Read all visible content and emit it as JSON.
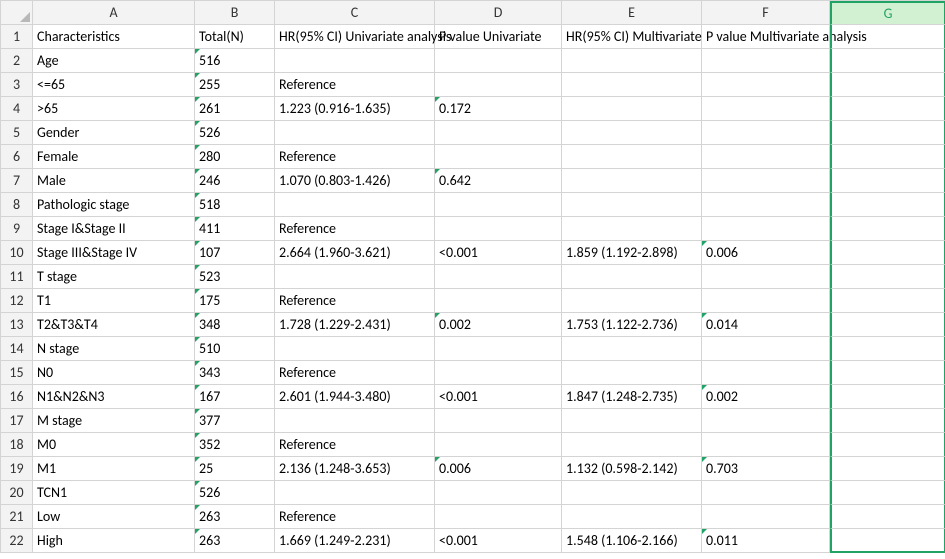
{
  "columns": [
    "A",
    "B",
    "C",
    "D",
    "E",
    "F",
    "G"
  ],
  "rowCount": 22,
  "headerRow": {
    "A": "Characteristics",
    "B": "Total(N)",
    "C": "HR(95% CI) Univariate analysis",
    "D": "P value Univariate",
    "E": "HR(95% CI) Multivariate",
    "F": "P value Multivariate analysis",
    "G": ""
  },
  "rows": [
    {
      "A": "Age",
      "B": "516",
      "C": "",
      "D": "",
      "E": "",
      "F": ""
    },
    {
      "A": "<=65",
      "B": "255",
      "C": "Reference",
      "D": "",
      "E": "",
      "F": ""
    },
    {
      "A": ">65",
      "B": "261",
      "C": "1.223 (0.916-1.635)",
      "D": "0.172",
      "E": "",
      "F": ""
    },
    {
      "A": "Gender",
      "B": "526",
      "C": "",
      "D": "",
      "E": "",
      "F": ""
    },
    {
      "A": "Female",
      "B": "280",
      "C": "Reference",
      "D": "",
      "E": "",
      "F": ""
    },
    {
      "A": "Male",
      "B": "246",
      "C": "1.070 (0.803-1.426)",
      "D": "0.642",
      "E": "",
      "F": ""
    },
    {
      "A": "Pathologic stage",
      "B": "518",
      "C": "",
      "D": "",
      "E": "",
      "F": ""
    },
    {
      "A": "Stage I&Stage II",
      "B": "411",
      "C": "Reference",
      "D": "",
      "E": "",
      "F": ""
    },
    {
      "A": "Stage III&Stage IV",
      "B": "107",
      "C": "2.664 (1.960-3.621)",
      "D": "<0.001",
      "E": "1.859 (1.192-2.898)",
      "F": "0.006"
    },
    {
      "A": "T stage",
      "B": "523",
      "C": "",
      "D": "",
      "E": "",
      "F": ""
    },
    {
      "A": "T1",
      "B": "175",
      "C": "Reference",
      "D": "",
      "E": "",
      "F": ""
    },
    {
      "A": "T2&T3&T4",
      "B": "348",
      "C": "1.728 (1.229-2.431)",
      "D": "0.002",
      "E": "1.753 (1.122-2.736)",
      "F": "0.014"
    },
    {
      "A": "N stage",
      "B": "510",
      "C": "",
      "D": "",
      "E": "",
      "F": ""
    },
    {
      "A": "N0",
      "B": "343",
      "C": "Reference",
      "D": "",
      "E": "",
      "F": ""
    },
    {
      "A": "N1&N2&N3",
      "B": "167",
      "C": "2.601 (1.944-3.480)",
      "D": "<0.001",
      "E": "1.847 (1.248-2.735)",
      "F": "0.002"
    },
    {
      "A": "M stage",
      "B": "377",
      "C": "",
      "D": "",
      "E": "",
      "F": ""
    },
    {
      "A": "M0",
      "B": "352",
      "C": "Reference",
      "D": "",
      "E": "",
      "F": ""
    },
    {
      "A": "M1",
      "B": "25",
      "C": "2.136 (1.248-3.653)",
      "D": "0.006",
      "E": "1.132 (0.598-2.142)",
      "F": "0.703"
    },
    {
      "A": "TCN1",
      "B": "526",
      "C": "",
      "D": "",
      "E": "",
      "F": ""
    },
    {
      "A": "Low",
      "B": "263",
      "C": "Reference",
      "D": "",
      "E": "",
      "F": ""
    },
    {
      "A": "High",
      "B": "263",
      "C": "1.669 (1.249-2.231)",
      "D": "<0.001",
      "E": "1.548 (1.106-2.166)",
      "F": "0.011"
    }
  ],
  "selectedColumn": "G",
  "colors": {
    "gridline": "#d4d4d4",
    "headerBg": "#f3f3f3",
    "accent": "#21a366",
    "selectedBg": "#d2f0d2"
  }
}
